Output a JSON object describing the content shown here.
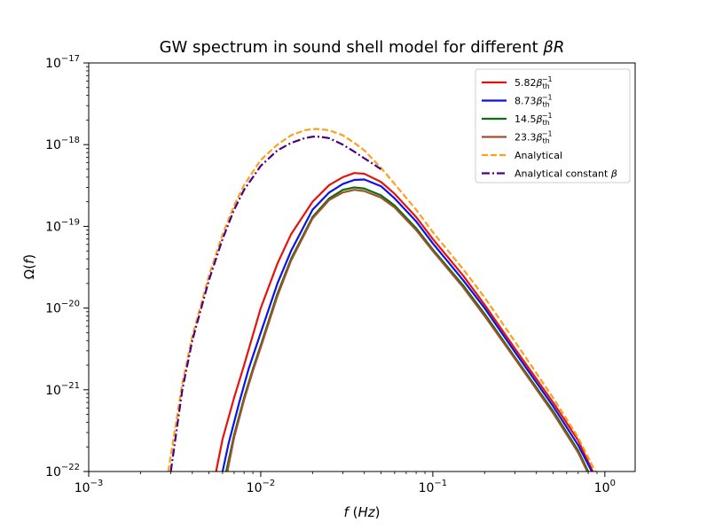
{
  "chart_data": {
    "type": "line",
    "title": "GW spectrum in sound shell model for different βR",
    "xlabel": "f (Hz)",
    "ylabel": "Ω(f)",
    "xscale": "log",
    "yscale": "log",
    "xlim": [
      0.001,
      1.5
    ],
    "ylim": [
      1e-22,
      1e-17
    ],
    "x_ticks": [
      {
        "value": 0.001,
        "base": "10",
        "exp": "−3"
      },
      {
        "value": 0.01,
        "base": "10",
        "exp": "−2"
      },
      {
        "value": 0.1,
        "base": "10",
        "exp": "−1"
      },
      {
        "value": 1,
        "base": "10",
        "exp": "0"
      }
    ],
    "y_ticks": [
      {
        "value": 1e-22,
        "base": "10",
        "exp": "−22"
      },
      {
        "value": 1e-21,
        "base": "10",
        "exp": "−21"
      },
      {
        "value": 1e-20,
        "base": "10",
        "exp": "−20"
      },
      {
        "value": 1e-19,
        "base": "10",
        "exp": "−19"
      },
      {
        "value": 1e-18,
        "base": "10",
        "exp": "−18"
      },
      {
        "value": 1e-17,
        "base": "10",
        "exp": "−17"
      }
    ],
    "legend_position": "top-right",
    "series": [
      {
        "name": "5.82β_th^−1",
        "coef": "5.82",
        "sub": "th",
        "sup": "−1",
        "color": "#e8120c",
        "dash": "solid",
        "x": [
          0.0055,
          0.006,
          0.007,
          0.008,
          0.01,
          0.0125,
          0.015,
          0.02,
          0.025,
          0.03,
          0.035,
          0.04,
          0.05,
          0.06,
          0.08,
          0.1,
          0.15,
          0.2,
          0.3,
          0.5,
          0.7,
          0.85
        ],
        "y": [
          1e-22,
          2.5e-22,
          8e-22,
          2e-21,
          1e-20,
          3.5e-20,
          8e-20,
          2e-19,
          3.2e-19,
          4e-19,
          4.5e-19,
          4.4e-19,
          3.5e-19,
          2.5e-19,
          1.3e-19,
          7e-20,
          2.5e-20,
          1.1e-20,
          3.2e-21,
          7e-22,
          2.4e-22,
          1e-22
        ]
      },
      {
        "name": "8.73β_th^−1",
        "coef": "8.73",
        "sub": "th",
        "sup": "−1",
        "color": "#0c12e8",
        "dash": "solid",
        "x": [
          0.006,
          0.0065,
          0.0075,
          0.0085,
          0.01,
          0.0125,
          0.015,
          0.02,
          0.025,
          0.03,
          0.035,
          0.04,
          0.05,
          0.06,
          0.08,
          0.1,
          0.15,
          0.2,
          0.3,
          0.5,
          0.7,
          0.84
        ],
        "y": [
          1e-22,
          2.2e-22,
          7e-22,
          1.8e-21,
          5e-21,
          2e-20,
          5e-20,
          1.6e-19,
          2.6e-19,
          3.3e-19,
          3.7e-19,
          3.75e-19,
          3.1e-19,
          2.2e-19,
          1.15e-19,
          6.2e-20,
          2.2e-20,
          1e-20,
          2.9e-21,
          6.3e-22,
          2.1e-22,
          1e-22
        ]
      },
      {
        "name": "14.5β_th^−1",
        "coef": "14.5",
        "sub": "th",
        "sup": "−1",
        "color": "#0c6e0c",
        "dash": "solid",
        "x": [
          0.0063,
          0.007,
          0.008,
          0.009,
          0.01,
          0.0125,
          0.015,
          0.02,
          0.025,
          0.03,
          0.035,
          0.04,
          0.05,
          0.06,
          0.08,
          0.1,
          0.15,
          0.2,
          0.3,
          0.5,
          0.7,
          0.8
        ],
        "y": [
          1e-22,
          2.8e-22,
          8e-22,
          1.8e-21,
          3.5e-21,
          1.5e-20,
          4e-20,
          1.3e-19,
          2.2e-19,
          2.8e-19,
          3e-19,
          2.9e-19,
          2.4e-19,
          1.8e-19,
          9.5e-20,
          5.2e-20,
          1.9e-20,
          8.5e-21,
          2.5e-21,
          5.5e-22,
          1.8e-22,
          1e-22
        ]
      },
      {
        "name": "23.3β_th^−1",
        "coef": "23.3",
        "sub": "th",
        "sup": "−1",
        "color": "#a0522d",
        "dash": "solid",
        "x": [
          0.0064,
          0.007,
          0.008,
          0.009,
          0.01,
          0.0125,
          0.015,
          0.02,
          0.025,
          0.03,
          0.035,
          0.04,
          0.05,
          0.06,
          0.08,
          0.1,
          0.15,
          0.2,
          0.3,
          0.5,
          0.7,
          0.79
        ],
        "y": [
          1e-22,
          2.6e-22,
          7.5e-22,
          1.7e-21,
          3.3e-21,
          1.4e-20,
          3.8e-20,
          1.25e-19,
          2.1e-19,
          2.6e-19,
          2.8e-19,
          2.7e-19,
          2.25e-19,
          1.7e-19,
          9e-20,
          5e-20,
          1.8e-20,
          8e-21,
          2.4e-21,
          5.2e-22,
          1.7e-22,
          1e-22
        ]
      },
      {
        "name": "Analytical",
        "color": "#ff9f1c",
        "dash": "dashed",
        "x": [
          0.0029,
          0.0035,
          0.004,
          0.005,
          0.006,
          0.007,
          0.008,
          0.01,
          0.0125,
          0.015,
          0.018,
          0.02,
          0.022,
          0.025,
          0.03,
          0.035,
          0.04,
          0.05,
          0.06,
          0.08,
          0.1,
          0.15,
          0.2,
          0.3,
          0.5,
          0.7,
          0.88
        ],
        "y": [
          1e-22,
          1.2e-21,
          4.5e-21,
          2.5e-20,
          8e-20,
          1.8e-19,
          3.2e-19,
          6.5e-19,
          1e-18,
          1.3e-18,
          1.5e-18,
          1.55e-18,
          1.55e-18,
          1.5e-18,
          1.3e-18,
          1.05e-18,
          8.5e-19,
          5.2e-19,
          3.3e-19,
          1.6e-19,
          8.5e-20,
          3e-20,
          1.35e-20,
          3.9e-21,
          8e-22,
          2.6e-22,
          1e-22
        ]
      },
      {
        "name": "Analytical constant β",
        "color": "#4b0082",
        "dash": "dashdot",
        "x": [
          0.003,
          0.0035,
          0.004,
          0.005,
          0.006,
          0.007,
          0.008,
          0.01,
          0.0125,
          0.015,
          0.018,
          0.02,
          0.022,
          0.025,
          0.03,
          0.035,
          0.04,
          0.045,
          0.05
        ],
        "y": [
          1e-22,
          1e-21,
          4e-21,
          2.2e-20,
          7e-20,
          1.6e-19,
          2.8e-19,
          5.5e-19,
          8.5e-19,
          1.05e-18,
          1.2e-18,
          1.25e-18,
          1.25e-18,
          1.2e-18,
          1e-18,
          8.2e-19,
          6.8e-19,
          5.8e-19,
          5e-19
        ]
      }
    ]
  }
}
